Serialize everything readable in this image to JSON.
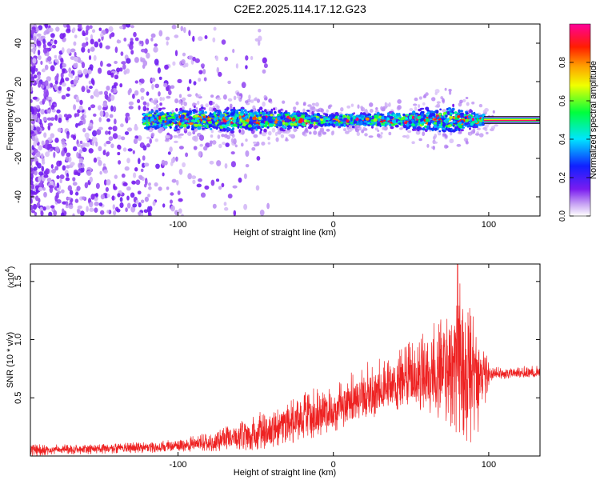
{
  "figure_title": "C2E2.2025.114.17.12.G23",
  "chart_data": [
    {
      "type": "heatmap",
      "title": "C2E2.2025.114.17.12.G23",
      "xlabel": "Height of straight line (km)",
      "ylabel": "Frequency (Hz)",
      "xlim": [
        -195,
        133
      ],
      "ylim": [
        -50,
        50
      ],
      "xticks": [
        -100,
        0,
        100
      ],
      "yticks": [
        -40,
        -20,
        0,
        20,
        40
      ],
      "colorbar": {
        "label": "Normalized spectral amplitude",
        "range": [
          0,
          1
        ],
        "ticks": [
          0,
          0.2,
          0.4,
          0.6,
          0.8
        ],
        "tick_labels": [
          "0.0",
          "0.2",
          "0.4",
          "0.6",
          "0.8"
        ],
        "colormap": [
          "#ffffff",
          "#c9a7f4",
          "#7a1cf0",
          "#1020ff",
          "#00e5ff",
          "#00ff3c",
          "#f0ff00",
          "#ffa000",
          "#ff1e00",
          "#ff0099"
        ]
      },
      "description_of_structure": {
        "noise_region_x": [
          -195,
          -60
        ],
        "band_center_hz": 0,
        "band_halfwidth_hz_by_x": [
          {
            "x": -120,
            "hw": 5
          },
          {
            "x": -60,
            "hw": 6
          },
          {
            "x": -20,
            "hw": 4
          },
          {
            "x": 0,
            "hw": 3
          },
          {
            "x": 40,
            "hw": 4
          },
          {
            "x": 75,
            "hw": 7
          },
          {
            "x": 97,
            "hw": 3
          },
          {
            "x": 133,
            "hw": 1.5
          }
        ]
      }
    },
    {
      "type": "line",
      "xlabel": "Height of straight line (km)",
      "ylabel": "SNR (10 * v/v)",
      "y_multiplier_label": "(x10",
      "y_multiplier_exp": "4",
      "xlim": [
        -195,
        133
      ],
      "ylim": [
        0,
        1.65
      ],
      "xticks": [
        -100,
        0,
        100
      ],
      "yticks": [
        0.5,
        1.0,
        1.5
      ],
      "ytick_labels": [
        "0.5",
        "1.0",
        "1.5"
      ],
      "series": [
        {
          "color": "#ee2222",
          "envelope": [
            {
              "x": -195,
              "low": 0.0,
              "mid": 0.05,
              "high": 0.1
            },
            {
              "x": -150,
              "low": 0.02,
              "mid": 0.06,
              "high": 0.1
            },
            {
              "x": -110,
              "low": 0.03,
              "mid": 0.08,
              "high": 0.13
            },
            {
              "x": -80,
              "low": 0.04,
              "mid": 0.11,
              "high": 0.2
            },
            {
              "x": -50,
              "low": 0.05,
              "mid": 0.2,
              "high": 0.36
            },
            {
              "x": -30,
              "low": 0.1,
              "mid": 0.28,
              "high": 0.47
            },
            {
              "x": -10,
              "low": 0.15,
              "mid": 0.35,
              "high": 0.6
            },
            {
              "x": 0,
              "low": 0.2,
              "mid": 0.4,
              "high": 0.62
            },
            {
              "x": 20,
              "low": 0.3,
              "mid": 0.5,
              "high": 0.8
            },
            {
              "x": 40,
              "low": 0.4,
              "mid": 0.62,
              "high": 0.9
            },
            {
              "x": 60,
              "low": 0.38,
              "mid": 0.7,
              "high": 1.1
            },
            {
              "x": 75,
              "low": 0.25,
              "mid": 0.72,
              "high": 1.3
            },
            {
              "x": 82,
              "low": 0.1,
              "mid": 0.78,
              "high": 1.6
            },
            {
              "x": 90,
              "low": 0.12,
              "mid": 0.7,
              "high": 1.2
            },
            {
              "x": 97,
              "low": 0.3,
              "mid": 0.7,
              "high": 1.0
            },
            {
              "x": 101,
              "low": 0.65,
              "mid": 0.7,
              "high": 0.76
            },
            {
              "x": 133,
              "low": 0.68,
              "mid": 0.72,
              "high": 0.78
            }
          ],
          "peak": {
            "x": 80,
            "y": 1.65
          }
        }
      ]
    }
  ]
}
